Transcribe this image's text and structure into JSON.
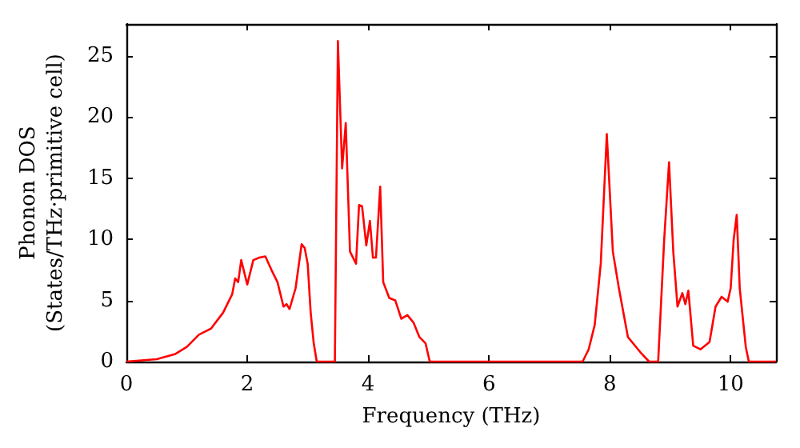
{
  "chart_data": {
    "type": "line",
    "xlabel": "Frequency (THz)",
    "ylabel": "Phonon DOS\n(States/THz·primitive cell)",
    "xlim": [
      0,
      10.75
    ],
    "xticks": [
      0,
      2,
      4,
      6,
      8,
      10
    ],
    "ylim": [
      0,
      27.6
    ],
    "yticks": [
      0,
      5,
      10,
      15,
      20,
      25
    ],
    "grid": false,
    "marker": "none",
    "line_style": "solid",
    "series": [
      {
        "color": "#ff0000",
        "x": [
          0,
          0.5,
          0.8,
          1.0,
          1.2,
          1.4,
          1.6,
          1.75,
          1.8,
          1.85,
          1.9,
          2.0,
          2.1,
          2.2,
          2.3,
          2.4,
          2.5,
          2.6,
          2.65,
          2.7,
          2.8,
          2.9,
          2.95,
          3.0,
          3.05,
          3.1,
          3.15,
          3.45,
          3.5,
          3.57,
          3.63,
          3.7,
          3.8,
          3.85,
          3.9,
          3.97,
          4.03,
          4.08,
          4.13,
          4.2,
          4.25,
          4.35,
          4.45,
          4.55,
          4.65,
          4.75,
          4.85,
          4.95,
          5.02,
          7.55,
          7.65,
          7.75,
          7.85,
          7.95,
          8.05,
          8.15,
          8.3,
          8.5,
          8.65,
          8.8,
          8.9,
          8.98,
          9.05,
          9.12,
          9.2,
          9.25,
          9.3,
          9.38,
          9.5,
          9.65,
          9.75,
          9.85,
          9.95,
          10.0,
          10.05,
          10.1,
          10.15,
          10.25,
          10.3,
          10.75
        ],
        "values": [
          0,
          0.2,
          0.6,
          1.2,
          2.2,
          2.7,
          4,
          5.5,
          6.8,
          6.5,
          8.3,
          6.3,
          8.3,
          8.5,
          8.6,
          7.5,
          6.5,
          4.5,
          4.7,
          4.3,
          6,
          9.6,
          9.3,
          8,
          4,
          1.5,
          0,
          0,
          26.2,
          15.8,
          19.5,
          9,
          8,
          12.8,
          12.7,
          9.5,
          11.5,
          8.5,
          8.5,
          14.3,
          6.5,
          5.2,
          5,
          3.5,
          3.8,
          3.2,
          2,
          1.5,
          0,
          0,
          1,
          3,
          8,
          18.6,
          9,
          6,
          2,
          0.8,
          0,
          0,
          10,
          16.3,
          9,
          4.5,
          5.6,
          4.7,
          5.8,
          1.3,
          1,
          1.6,
          4.5,
          5.3,
          4.9,
          6,
          10,
          12,
          6,
          1.2,
          0,
          0
        ]
      }
    ]
  }
}
